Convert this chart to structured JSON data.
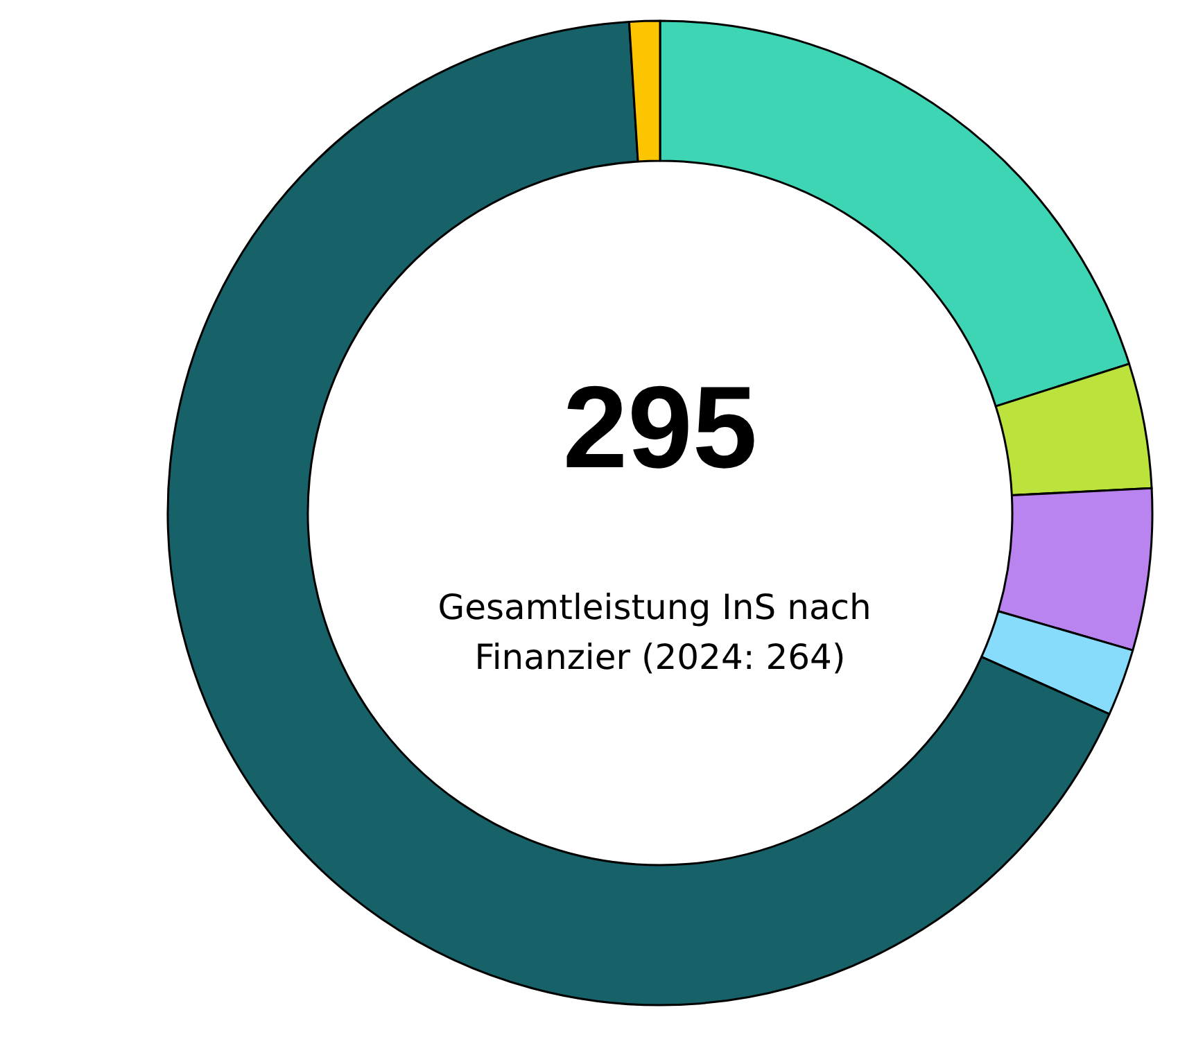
{
  "chart_data": {
    "type": "donut",
    "title": "295",
    "subtitle": "Gesamtleistung InS nach Finanzier (2024: 264)",
    "categories": [
      null,
      null,
      null,
      null,
      null,
      null
    ],
    "values": [
      20.1,
      4.1,
      5.3,
      2.2,
      67.3,
      1.0
    ],
    "colors": [
      "#3dd5b4",
      "#bce33c",
      "#b983f0",
      "#87dcfc",
      "#176268",
      "#fdc500"
    ]
  }
}
